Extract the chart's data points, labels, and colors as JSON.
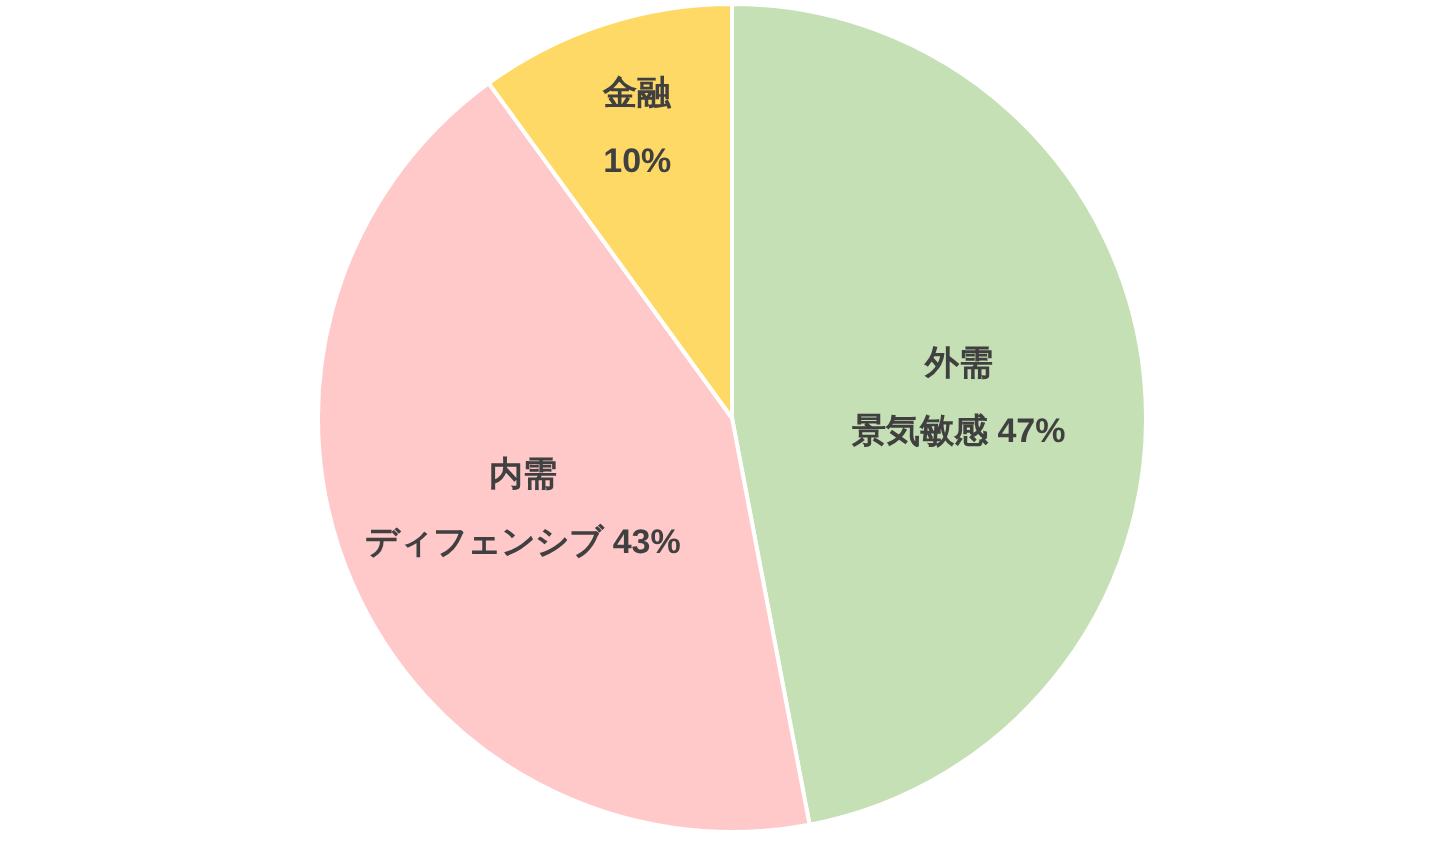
{
  "chart_data": {
    "type": "pie",
    "categories": [
      "外需景気敏感",
      "内需ディフェンシブ",
      "金融"
    ],
    "values": [
      47,
      43,
      10
    ],
    "value_labels": [
      "47%",
      "43%",
      "10%"
    ],
    "colors": [
      "#c5e0b4",
      "#ffc9c9",
      "#ffd966"
    ],
    "legend": false
  }
}
